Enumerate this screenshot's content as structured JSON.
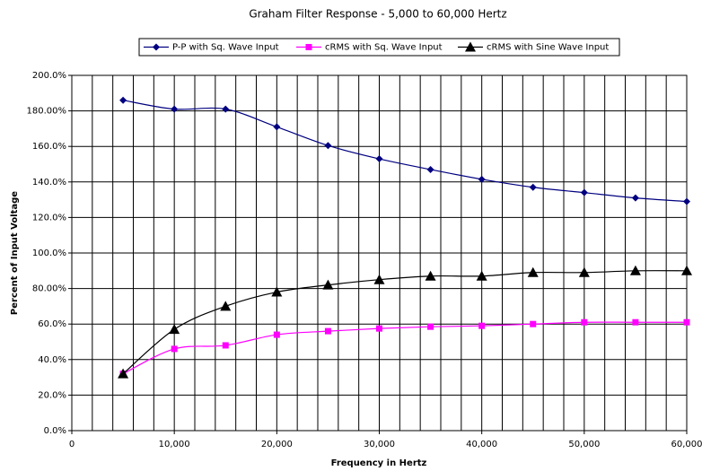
{
  "chart_data": {
    "type": "line",
    "title": "Graham Filter Response - 5,000 to 60,000 Hertz",
    "x_label": "Frequency in Hertz",
    "y_label": "Percent of Input Voltage",
    "x": [
      5000,
      10000,
      15000,
      20000,
      25000,
      30000,
      35000,
      40000,
      45000,
      50000,
      55000,
      60000
    ],
    "series": [
      {
        "name": "P-P with Sq. Wave Input",
        "color": "#000080",
        "marker": "diamond",
        "values": [
          186,
          181,
          181,
          171,
          160.5,
          153,
          147,
          141.5,
          137,
          134,
          131,
          129
        ]
      },
      {
        "name": "cRMS with Sq. Wave Input",
        "color": "#ff00ff",
        "marker": "square",
        "values": [
          32,
          46,
          48,
          54,
          56,
          57.5,
          58.5,
          59,
          60,
          61,
          61,
          61
        ]
      },
      {
        "name": "cRMS with Sine Wave Input",
        "color": "#000000",
        "marker": "triangle",
        "values": [
          32,
          57,
          70,
          78,
          82,
          85,
          87,
          87,
          89,
          89,
          90,
          90
        ]
      }
    ],
    "xlim": [
      0,
      60000
    ],
    "xticks": [
      0,
      {
        "value": 10000,
        "label": "10,000"
      },
      {
        "value": 20000,
        "label": "20,000"
      },
      {
        "value": 30000,
        "label": "30,000"
      },
      {
        "value": 40000,
        "label": "40,000"
      },
      {
        "value": 50000,
        "label": "50,000"
      },
      {
        "value": 60000,
        "label": "60,000"
      }
    ],
    "xgrid": [
      0,
      2000,
      4000,
      6000,
      8000,
      10000,
      12000,
      14000,
      16000,
      18000,
      20000,
      22000,
      24000,
      26000,
      28000,
      30000,
      32000,
      34000,
      36000,
      38000,
      40000,
      42000,
      44000,
      46000,
      48000,
      50000,
      52000,
      54000,
      56000,
      58000,
      60000
    ],
    "ylim": [
      0,
      200
    ],
    "yticks": [
      {
        "value": 0,
        "label": "0.0%"
      },
      {
        "value": 20,
        "label": "20.0%"
      },
      {
        "value": 40,
        "label": "40.0%"
      },
      {
        "value": 60,
        "label": "60.0%"
      },
      {
        "value": 80,
        "label": "80.00%"
      },
      {
        "value": 100,
        "label": "100.0%"
      },
      {
        "value": 120,
        "label": "120.0%"
      },
      {
        "value": 140,
        "label": "140.0%"
      },
      {
        "value": 160,
        "label": "160.0%"
      },
      {
        "value": 180,
        "label": "180.00%"
      },
      {
        "value": 200,
        "label": "200.0%"
      }
    ],
    "grid": true,
    "legend": "top"
  }
}
